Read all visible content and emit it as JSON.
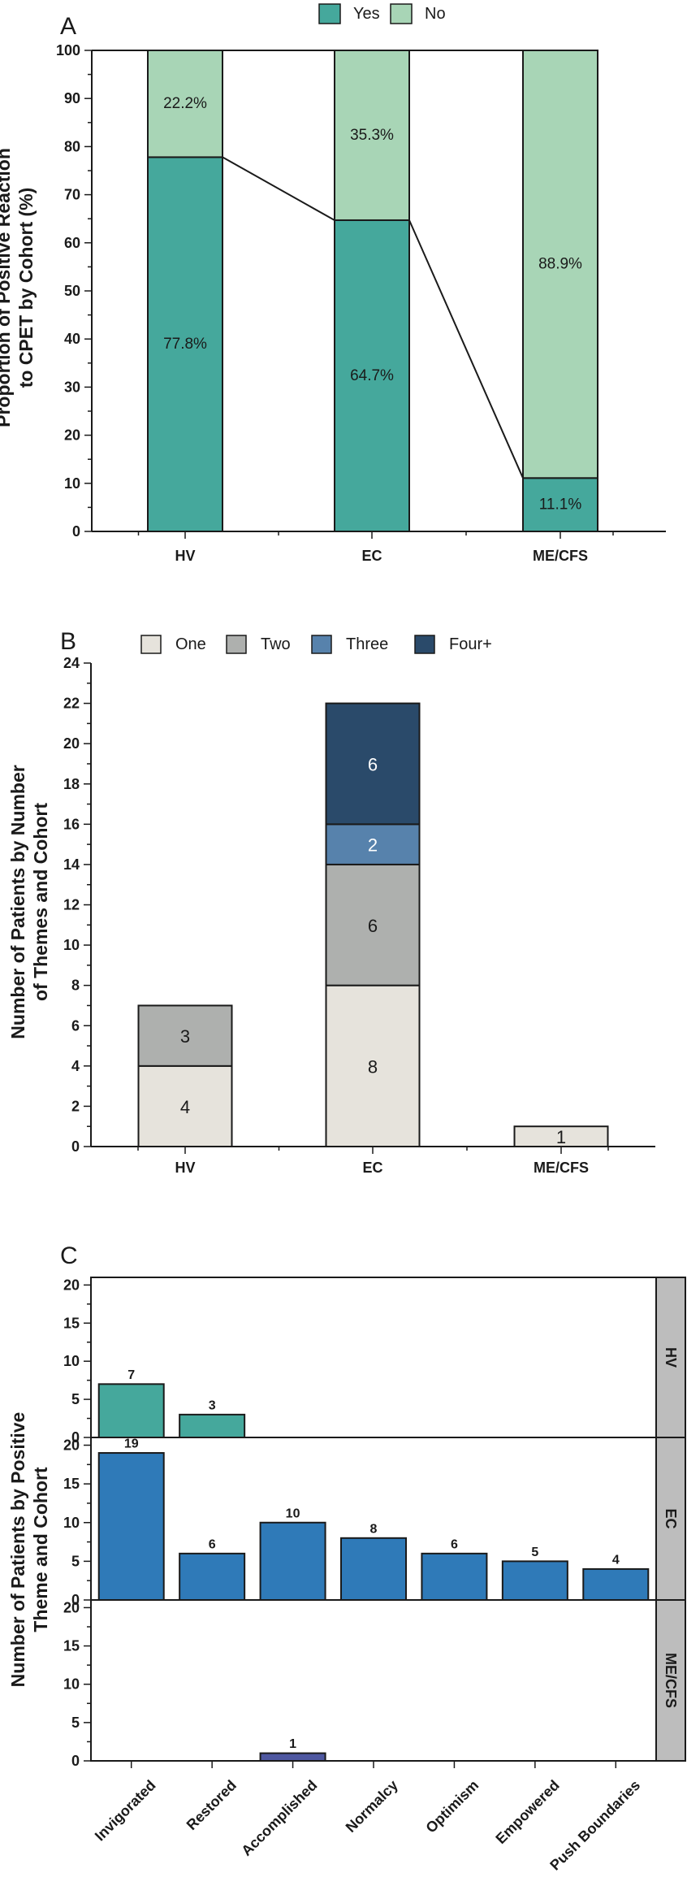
{
  "chart_data": [
    {
      "panel": "A",
      "type": "bar",
      "stacked": true,
      "categories": [
        "HV",
        "EC",
        "ME/CFS"
      ],
      "series": [
        {
          "name": "Yes",
          "values": [
            77.8,
            64.7,
            11.1
          ],
          "labels": [
            "77.8%",
            "64.7%",
            "11.1%"
          ],
          "color": "#45a89c"
        },
        {
          "name": "No",
          "values": [
            22.2,
            35.3,
            88.9
          ],
          "labels": [
            "22.2%",
            "35.3%",
            "88.9%"
          ],
          "color": "#a8d5b6"
        }
      ],
      "title": "",
      "xlabel": "",
      "ylabel_lines": [
        "Proportion of Positive Reaction",
        "to CPET by Cohort (%)"
      ],
      "ylim": [
        0,
        100
      ],
      "yticks": [
        0,
        10,
        20,
        30,
        40,
        50,
        60,
        70,
        80,
        90,
        100
      ],
      "connector_line": true,
      "legend_position": "top-center"
    },
    {
      "panel": "B",
      "type": "bar",
      "stacked": true,
      "categories": [
        "HV",
        "EC",
        "ME/CFS"
      ],
      "series": [
        {
          "name": "One",
          "values": [
            4,
            8,
            1
          ],
          "color": "#e6e3dc",
          "label_color": "#1a1a1a"
        },
        {
          "name": "Two",
          "values": [
            3,
            6,
            0
          ],
          "color": "#aeb0ae",
          "label_color": "#1a1a1a"
        },
        {
          "name": "Three",
          "values": [
            0,
            2,
            0
          ],
          "color": "#5782ac",
          "label_color": "#ffffff"
        },
        {
          "name": "Four+",
          "values": [
            0,
            6,
            0
          ],
          "color": "#2a4a6a",
          "label_color": "#ffffff"
        }
      ],
      "title": "",
      "xlabel": "",
      "ylabel_lines": [
        "Number of Patients by Number",
        "of Themes and Cohort"
      ],
      "ylim": [
        0,
        24
      ],
      "yticks": [
        0,
        2,
        4,
        6,
        8,
        10,
        12,
        14,
        16,
        18,
        20,
        22,
        24
      ],
      "legend_position": "top-center"
    },
    {
      "panel": "C",
      "type": "bar",
      "faceted": true,
      "categories": [
        "Invigorated",
        "Restored",
        "Accomplished",
        "Normalcy",
        "Optimism",
        "Empowered",
        "Push Boundaries"
      ],
      "facets": [
        {
          "name": "HV",
          "values": [
            7,
            3,
            null,
            null,
            null,
            null,
            null
          ],
          "color": "#45a89c"
        },
        {
          "name": "EC",
          "values": [
            19,
            6,
            10,
            8,
            6,
            5,
            4
          ],
          "color": "#2f7ab8"
        },
        {
          "name": "ME/CFS",
          "values": [
            null,
            null,
            1,
            null,
            null,
            null,
            null
          ],
          "color": "#4e57a0"
        }
      ],
      "title": "",
      "xlabel": "",
      "ylabel_lines": [
        "Number of Patients by Positive",
        "Theme and Cohort"
      ],
      "ylim": [
        0,
        21
      ],
      "yticks": [
        0,
        5,
        10,
        15,
        20
      ]
    }
  ],
  "panel_letters": {
    "a": "A",
    "b": "B",
    "c": "C"
  }
}
